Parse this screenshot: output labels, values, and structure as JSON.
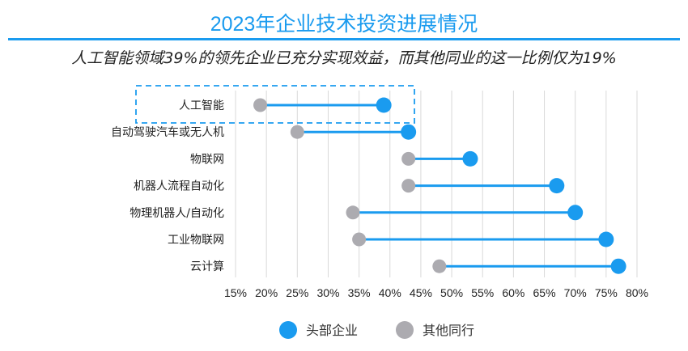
{
  "chart_data": {
    "type": "dumbbell",
    "title": "2023年企业技术投资进展情况",
    "subtitle": "人工智能领域39%的领先企业已充分实现效益，而其他同业的这一比例仅为19%",
    "categories": [
      "人工智能",
      "自动驾驶汽车或无人机",
      "物联网",
      "机器人流程自动化",
      "物理机器人/自动化",
      "工业物联网",
      "云计算"
    ],
    "series": [
      {
        "name": "头部企业",
        "color": "#1a9bef",
        "values": [
          39,
          43,
          53,
          67,
          70,
          75,
          77
        ]
      },
      {
        "name": "其他同行",
        "color": "#acabb0",
        "values": [
          19,
          25,
          43,
          43,
          34,
          35,
          48
        ]
      }
    ],
    "connector_color": "#1a9bef",
    "xlim": [
      15,
      80
    ],
    "xticks": [
      "15%",
      "20%",
      "25%",
      "30%",
      "35%",
      "40%",
      "45%",
      "50%",
      "55%",
      "60%",
      "65%",
      "70%",
      "75%",
      "80%"
    ],
    "grid": true,
    "highlight_category": "人工智能",
    "legend_position": "bottom"
  }
}
